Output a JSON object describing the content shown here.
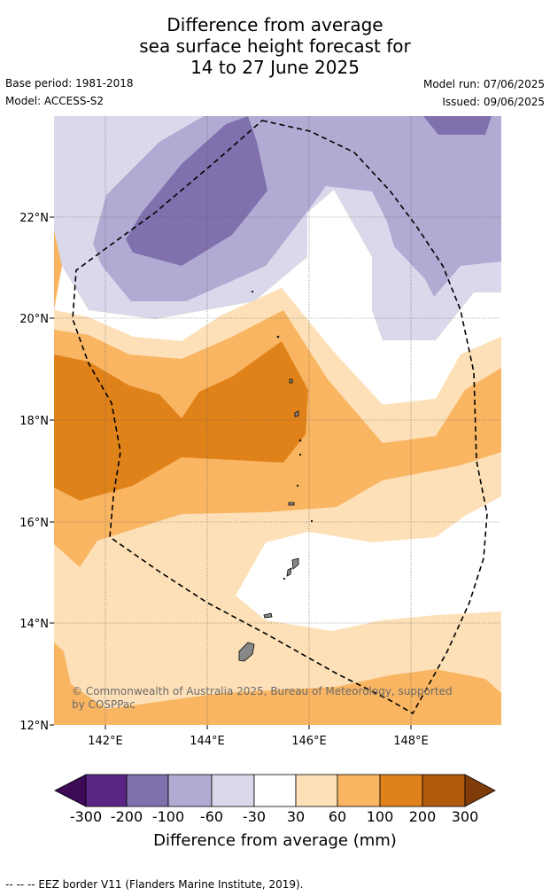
{
  "title": {
    "line1": "Difference from average",
    "line2": "sea surface height forecast for",
    "line3": "14 to 27 June 2025"
  },
  "meta": {
    "base_period": "Base period: 1981-2018",
    "model": "Model: ACCESS-S2",
    "model_run": "Model run: 07/06/2025",
    "issued": "Issued: 09/06/2025"
  },
  "map": {
    "lat_labels": [
      "22°N",
      "20°N",
      "18°N",
      "16°N",
      "14°N",
      "12°N"
    ],
    "lon_labels": [
      "142°E",
      "144°E",
      "146°E",
      "148°E"
    ],
    "copyright_line1": "© Commonwealth of Australia 2025, Bureau of Meteorology, supported",
    "copyright_line2": "by COSPPac"
  },
  "colorbar": {
    "ticks": [
      "-300",
      "-200",
      "-100",
      "-60",
      "-30",
      "30",
      "60",
      "100",
      "200",
      "300"
    ],
    "colors": [
      "#3c0a57",
      "#5a2585",
      "#8070ad",
      "#b1abd3",
      "#d9d9eb",
      "#ffffff",
      "#fde0b7",
      "#f9b562",
      "#e0821a",
      "#b15a0b",
      "#7f3b08"
    ],
    "label": "Difference from average (mm)"
  },
  "footer": "--  --  -- EEZ border V11 (Flanders Marine Institute, 2019)."
}
